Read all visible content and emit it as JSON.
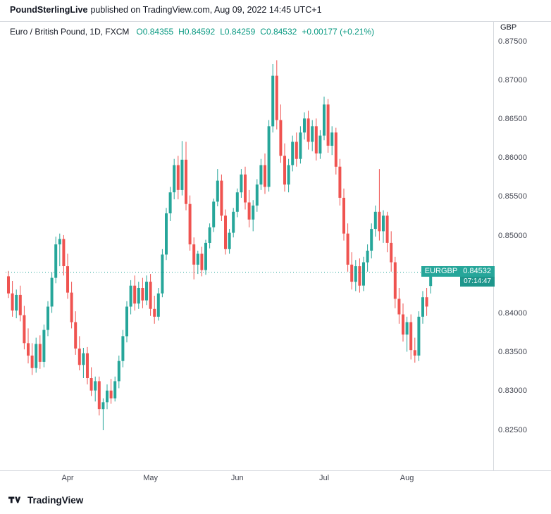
{
  "header": {
    "brand": "PoundSterlingLive",
    "text": "published on TradingView.com, Aug 09, 2022 14:45 UTC+1"
  },
  "legend": {
    "title": "Euro / British Pound, 1D, FXCM",
    "open_label": "O",
    "open": "0.84355",
    "high_label": "H",
    "high": "0.84592",
    "low_label": "L",
    "low": "0.84259",
    "close_label": "C",
    "close": "0.84532",
    "change": "+0.00177 (+0.21%)"
  },
  "price_axis": {
    "currency": "GBP",
    "ticks": [
      "0.87500",
      "0.87000",
      "0.86500",
      "0.86000",
      "0.85500",
      "0.85000",
      "0.84000",
      "0.83500",
      "0.83000",
      "0.82500"
    ]
  },
  "price_label": {
    "symbol": "EURGBP",
    "price": "0.84532",
    "countdown": "07:14:47"
  },
  "footer": {
    "brand": "TradingView"
  },
  "colors": {
    "up": "#26a69a",
    "down": "#ef5350",
    "accent": "#26a69a",
    "legend_value": "#089981",
    "axis_line": "#d7dadf",
    "text": "#131722",
    "muted": "#434651"
  },
  "chart_data": {
    "type": "candlestick",
    "symbol": "EURGBP",
    "title": "Euro / British Pound, 1D, FXCM",
    "interval": "1D",
    "exchange": "FXCM",
    "last_price": 0.84532,
    "last_ohlc": {
      "open": 0.84355,
      "high": 0.84592,
      "low": 0.84259,
      "close": 0.84532
    },
    "price_range": [
      0.825,
      0.875
    ],
    "tick_step": 0.005,
    "grid": false,
    "legend_position": "top-left",
    "months": [
      {
        "label": "Apr",
        "i": 15
      },
      {
        "label": "May",
        "i": 36
      },
      {
        "label": "Jun",
        "i": 58
      },
      {
        "label": "Jul",
        "i": 80
      },
      {
        "label": "Aug",
        "i": 101
      }
    ],
    "ohlc": [
      [
        0.8448,
        0.8455,
        0.842,
        0.8426
      ],
      [
        0.8426,
        0.8442,
        0.8396,
        0.8404
      ],
      [
        0.8404,
        0.8431,
        0.8394,
        0.8424
      ],
      [
        0.8424,
        0.8436,
        0.839,
        0.8398
      ],
      [
        0.8398,
        0.841,
        0.8354,
        0.8362
      ],
      [
        0.8362,
        0.8381,
        0.8336,
        0.8346
      ],
      [
        0.8346,
        0.8362,
        0.8321,
        0.833
      ],
      [
        0.833,
        0.8369,
        0.8324,
        0.8361
      ],
      [
        0.8361,
        0.8372,
        0.8329,
        0.8338
      ],
      [
        0.8338,
        0.8386,
        0.8331,
        0.8379
      ],
      [
        0.8379,
        0.8416,
        0.8371,
        0.8409
      ],
      [
        0.8409,
        0.8453,
        0.8401,
        0.8446
      ],
      [
        0.8446,
        0.8499,
        0.8439,
        0.8489
      ],
      [
        0.8489,
        0.8503,
        0.8461,
        0.8496
      ],
      [
        0.8496,
        0.8501,
        0.8449,
        0.8461
      ],
      [
        0.8461,
        0.8477,
        0.8419,
        0.8427
      ],
      [
        0.8427,
        0.8441,
        0.8381,
        0.8389
      ],
      [
        0.8389,
        0.8403,
        0.8347,
        0.8355
      ],
      [
        0.8355,
        0.8371,
        0.8327,
        0.8334
      ],
      [
        0.8334,
        0.8356,
        0.8317,
        0.8349
      ],
      [
        0.8349,
        0.8357,
        0.8309,
        0.8317
      ],
      [
        0.8317,
        0.8331,
        0.8294,
        0.8301
      ],
      [
        0.8301,
        0.8319,
        0.8287,
        0.8313
      ],
      [
        0.8313,
        0.8319,
        0.8269,
        0.8277
      ],
      [
        0.8277,
        0.8291,
        0.825,
        0.8286
      ],
      [
        0.8286,
        0.8309,
        0.8277,
        0.8301
      ],
      [
        0.8301,
        0.8316,
        0.8284,
        0.8291
      ],
      [
        0.8291,
        0.8319,
        0.8287,
        0.8313
      ],
      [
        0.8313,
        0.8346,
        0.8304,
        0.8339
      ],
      [
        0.8339,
        0.8379,
        0.8331,
        0.8371
      ],
      [
        0.8371,
        0.8416,
        0.8363,
        0.8409
      ],
      [
        0.8409,
        0.8443,
        0.8399,
        0.8436
      ],
      [
        0.8436,
        0.8449,
        0.8404,
        0.8413
      ],
      [
        0.8413,
        0.8441,
        0.8406,
        0.8433
      ],
      [
        0.8433,
        0.8446,
        0.8407,
        0.8417
      ],
      [
        0.8417,
        0.8449,
        0.8411,
        0.8441
      ],
      [
        0.8441,
        0.8451,
        0.8397,
        0.8406
      ],
      [
        0.8406,
        0.8423,
        0.8387,
        0.8396
      ],
      [
        0.8396,
        0.8433,
        0.8391,
        0.8426
      ],
      [
        0.8426,
        0.8483,
        0.8421,
        0.8476
      ],
      [
        0.8476,
        0.8536,
        0.8469,
        0.8529
      ],
      [
        0.8529,
        0.8563,
        0.8519,
        0.8556
      ],
      [
        0.8556,
        0.8599,
        0.8547,
        0.8591
      ],
      [
        0.8591,
        0.8603,
        0.8547,
        0.8559
      ],
      [
        0.8559,
        0.8622,
        0.8552,
        0.8598
      ],
      [
        0.8598,
        0.8621,
        0.8533,
        0.8541
      ],
      [
        0.8541,
        0.8552,
        0.8481,
        0.8489
      ],
      [
        0.8489,
        0.8498,
        0.8444,
        0.8463
      ],
      [
        0.8463,
        0.8481,
        0.8451,
        0.8477
      ],
      [
        0.8477,
        0.8486,
        0.8448,
        0.8456
      ],
      [
        0.8456,
        0.8495,
        0.845,
        0.8491
      ],
      [
        0.8491,
        0.8516,
        0.8484,
        0.8511
      ],
      [
        0.8511,
        0.8548,
        0.8505,
        0.8544
      ],
      [
        0.8544,
        0.8586,
        0.8538,
        0.8571
      ],
      [
        0.8571,
        0.8579,
        0.8519,
        0.8526
      ],
      [
        0.8526,
        0.8534,
        0.8476,
        0.8483
      ],
      [
        0.8483,
        0.8509,
        0.8477,
        0.8504
      ],
      [
        0.8504,
        0.8536,
        0.8498,
        0.8531
      ],
      [
        0.8531,
        0.8561,
        0.8524,
        0.8556
      ],
      [
        0.8556,
        0.8586,
        0.8549,
        0.8579
      ],
      [
        0.8579,
        0.8589,
        0.8534,
        0.8543
      ],
      [
        0.8543,
        0.8559,
        0.8511,
        0.8521
      ],
      [
        0.8521,
        0.8546,
        0.8506,
        0.8539
      ],
      [
        0.8539,
        0.8573,
        0.8531,
        0.8566
      ],
      [
        0.8566,
        0.8599,
        0.8559,
        0.8591
      ],
      [
        0.8591,
        0.8606,
        0.8554,
        0.8563
      ],
      [
        0.8563,
        0.8649,
        0.8557,
        0.8641
      ],
      [
        0.8641,
        0.8721,
        0.8633,
        0.8706
      ],
      [
        0.8706,
        0.8726,
        0.8637,
        0.8649
      ],
      [
        0.8649,
        0.8669,
        0.8594,
        0.8603
      ],
      [
        0.8603,
        0.8619,
        0.8557,
        0.8566
      ],
      [
        0.8566,
        0.8599,
        0.8556,
        0.8591
      ],
      [
        0.8591,
        0.8629,
        0.8583,
        0.8621
      ],
      [
        0.8621,
        0.8633,
        0.8589,
        0.8599
      ],
      [
        0.8599,
        0.8641,
        0.8593,
        0.8633
      ],
      [
        0.8633,
        0.8659,
        0.8624,
        0.8651
      ],
      [
        0.8651,
        0.8661,
        0.8611,
        0.8621
      ],
      [
        0.8621,
        0.8649,
        0.8609,
        0.8641
      ],
      [
        0.8641,
        0.8651,
        0.8597,
        0.8606
      ],
      [
        0.8606,
        0.8636,
        0.8599,
        0.8629
      ],
      [
        0.8629,
        0.8679,
        0.8623,
        0.8669
      ],
      [
        0.8669,
        0.8676,
        0.8607,
        0.8616
      ],
      [
        0.8616,
        0.8641,
        0.8604,
        0.8633
      ],
      [
        0.8633,
        0.8639,
        0.8579,
        0.8589
      ],
      [
        0.8589,
        0.8599,
        0.8539,
        0.8549
      ],
      [
        0.8549,
        0.8561,
        0.8494,
        0.8503
      ],
      [
        0.8503,
        0.8516,
        0.8454,
        0.8463
      ],
      [
        0.8463,
        0.8479,
        0.8431,
        0.8441
      ],
      [
        0.8441,
        0.8469,
        0.8429,
        0.8461
      ],
      [
        0.8461,
        0.8471,
        0.8427,
        0.8436
      ],
      [
        0.8436,
        0.8473,
        0.8429,
        0.8466
      ],
      [
        0.8466,
        0.8489,
        0.8454,
        0.8481
      ],
      [
        0.8481,
        0.8516,
        0.8471,
        0.8509
      ],
      [
        0.8509,
        0.8539,
        0.8499,
        0.8531
      ],
      [
        0.8531,
        0.8586,
        0.8494,
        0.8506
      ],
      [
        0.8506,
        0.8533,
        0.8491,
        0.8526
      ],
      [
        0.8526,
        0.8531,
        0.8479,
        0.8491
      ],
      [
        0.8491,
        0.8506,
        0.8454,
        0.8466
      ],
      [
        0.8466,
        0.8473,
        0.8407,
        0.8419
      ],
      [
        0.8419,
        0.8433,
        0.8387,
        0.8399
      ],
      [
        0.8399,
        0.8413,
        0.8364,
        0.8373
      ],
      [
        0.8373,
        0.8396,
        0.8351,
        0.8389
      ],
      [
        0.8389,
        0.8399,
        0.8341,
        0.8353
      ],
      [
        0.8353,
        0.8369,
        0.8337,
        0.8346
      ],
      [
        0.8346,
        0.8403,
        0.8339,
        0.8396
      ],
      [
        0.8396,
        0.8429,
        0.8387,
        0.8421
      ],
      [
        0.8421,
        0.8433,
        0.8397,
        0.8409
      ],
      [
        0.84355,
        0.84592,
        0.84259,
        0.84532
      ]
    ]
  }
}
